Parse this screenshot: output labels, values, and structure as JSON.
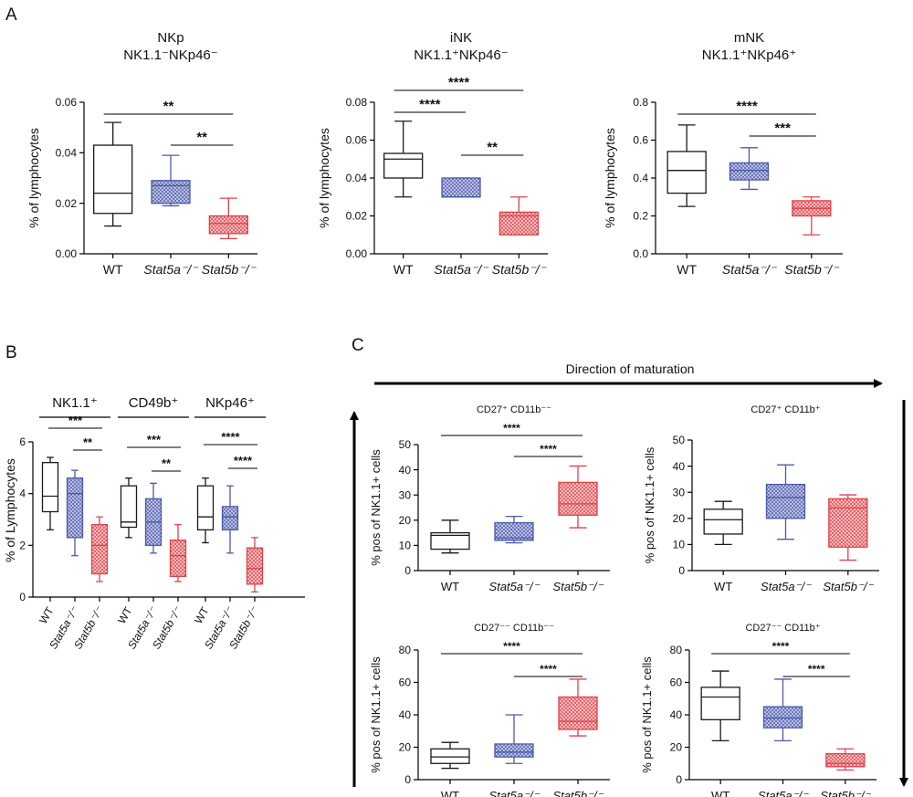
{
  "colors": {
    "WT": "#1a1a1a",
    "Stat5a": "#4b5aa8",
    "Stat5b": "#e0424a",
    "Stat5a_fill": "#c4c9e8",
    "Stat5b_fill": "#f6c2c2"
  },
  "panels": {
    "A": "A",
    "B": "B",
    "C": "C"
  },
  "legend_arrows": {
    "maturation": "Direction of maturation"
  },
  "chart_data": [
    {
      "id": "A1",
      "type": "box",
      "title": "NKp",
      "subtitle": "NK1.1⁻NKp46⁻",
      "ylabel": "% of lymphocytes",
      "ylim": [
        0,
        0.06
      ],
      "yticks": [
        "0.00",
        "0.02",
        "0.04",
        "0.06"
      ],
      "categories": [
        "WT",
        "Stat5a⁻/⁻",
        "Stat5b⁻/⁻"
      ],
      "boxes": [
        {
          "min": 0.011,
          "q1": 0.016,
          "median": 0.024,
          "q3": 0.043,
          "max": 0.052
        },
        {
          "min": 0.019,
          "q1": 0.02,
          "median": 0.027,
          "q3": 0.029,
          "max": 0.039
        },
        {
          "min": 0.006,
          "q1": 0.008,
          "median": 0.012,
          "q3": 0.015,
          "max": 0.022
        }
      ],
      "significance": [
        {
          "from": 0,
          "to": 2,
          "label": "**"
        },
        {
          "from": 1,
          "to": 2,
          "label": "**"
        }
      ]
    },
    {
      "id": "A2",
      "type": "box",
      "title": "iNK",
      "subtitle": "NK1.1⁺NKp46⁻",
      "ylabel": "% of lymphocytes",
      "ylim": [
        0,
        0.08
      ],
      "yticks": [
        "0.00",
        "0.02",
        "0.04",
        "0.06",
        "0.08"
      ],
      "categories": [
        "WT",
        "Stat5a⁻/⁻",
        "Stat5b⁻/⁻"
      ],
      "boxes": [
        {
          "min": 0.03,
          "q1": 0.04,
          "median": 0.05,
          "q3": 0.053,
          "max": 0.07
        },
        {
          "min": 0.03,
          "q1": 0.03,
          "median": 0.03,
          "q3": 0.04,
          "max": 0.04
        },
        {
          "min": 0.01,
          "q1": 0.01,
          "median": 0.02,
          "q3": 0.022,
          "max": 0.03
        }
      ],
      "significance": [
        {
          "from": 0,
          "to": 2,
          "label": "****"
        },
        {
          "from": 0,
          "to": 1,
          "label": "****"
        },
        {
          "from": 1,
          "to": 2,
          "label": "**"
        }
      ]
    },
    {
      "id": "A3",
      "type": "box",
      "title": "mNK",
      "subtitle": "NK1.1⁺NKp46⁺",
      "ylabel": "% of lymphocytes",
      "ylim": [
        0,
        0.8
      ],
      "yticks": [
        "0.0",
        "0.2",
        "0.4",
        "0.6",
        "0.8"
      ],
      "categories": [
        "WT",
        "Stat5a⁻/⁻",
        "Stat5b⁻/⁻"
      ],
      "boxes": [
        {
          "min": 0.25,
          "q1": 0.32,
          "median": 0.44,
          "q3": 0.54,
          "max": 0.68
        },
        {
          "min": 0.34,
          "q1": 0.39,
          "median": 0.44,
          "q3": 0.48,
          "max": 0.56
        },
        {
          "min": 0.1,
          "q1": 0.2,
          "median": 0.24,
          "q3": 0.28,
          "max": 0.3
        }
      ],
      "significance": [
        {
          "from": 0,
          "to": 2,
          "label": "****"
        },
        {
          "from": 1,
          "to": 2,
          "label": "***"
        }
      ]
    },
    {
      "id": "B",
      "type": "box",
      "ylabel": "% of Lymphocytes",
      "ylim": [
        0,
        6
      ],
      "yticks": [
        "0",
        "2",
        "4",
        "6"
      ],
      "groups": [
        {
          "name": "NK1.1⁺",
          "categories": [
            "WT",
            "Stat5a⁻/⁻",
            "Stat5b⁻/⁻"
          ],
          "boxes": [
            {
              "min": 2.6,
              "q1": 3.3,
              "median": 3.9,
              "q3": 5.2,
              "max": 5.4
            },
            {
              "min": 1.6,
              "q1": 2.3,
              "median": 4.0,
              "q3": 4.6,
              "max": 4.9
            },
            {
              "min": 0.6,
              "q1": 0.9,
              "median": 2.0,
              "q3": 2.8,
              "max": 3.1
            }
          ],
          "significance": [
            {
              "from": 0,
              "to": 2,
              "label": "***"
            },
            {
              "from": 1,
              "to": 2,
              "label": "**"
            }
          ]
        },
        {
          "name": "CD49b⁺",
          "categories": [
            "WT",
            "Stat5a⁻/⁻",
            "Stat5b⁻/⁻"
          ],
          "boxes": [
            {
              "min": 2.3,
              "q1": 2.7,
              "median": 2.9,
              "q3": 4.3,
              "max": 4.6
            },
            {
              "min": 1.7,
              "q1": 2.0,
              "median": 2.9,
              "q3": 3.8,
              "max": 4.4
            },
            {
              "min": 0.6,
              "q1": 0.8,
              "median": 1.6,
              "q3": 2.2,
              "max": 2.8
            }
          ],
          "significance": [
            {
              "from": 0,
              "to": 2,
              "label": "***"
            },
            {
              "from": 1,
              "to": 2,
              "label": "**"
            }
          ]
        },
        {
          "name": "NKp46⁺",
          "categories": [
            "WT",
            "Stat5a⁻/⁻",
            "Stat5b⁻/⁻"
          ],
          "boxes": [
            {
              "min": 2.1,
              "q1": 2.6,
              "median": 3.1,
              "q3": 4.3,
              "max": 4.6
            },
            {
              "min": 1.7,
              "q1": 2.6,
              "median": 3.1,
              "q3": 3.5,
              "max": 4.3
            },
            {
              "min": 0.2,
              "q1": 0.5,
              "median": 1.1,
              "q3": 1.9,
              "max": 2.3
            }
          ],
          "significance": [
            {
              "from": 0,
              "to": 2,
              "label": "****"
            },
            {
              "from": 1,
              "to": 2,
              "label": "****"
            }
          ]
        }
      ]
    },
    {
      "id": "C1",
      "type": "box",
      "title": "CD27⁺ CD11b⁻⁻",
      "ylabel": "% pos of NK1.1+ cells",
      "ylim": [
        0,
        50
      ],
      "yticks": [
        "0",
        "10",
        "20",
        "30",
        "40",
        "50"
      ],
      "categories": [
        "WT",
        "Stat5a⁻/⁻",
        "Stat5b⁻/⁻"
      ],
      "boxes": [
        {
          "min": 7,
          "q1": 8.5,
          "median": 14,
          "q3": 15,
          "max": 20
        },
        {
          "min": 11,
          "q1": 12,
          "median": 13,
          "q3": 19,
          "max": 21.5
        },
        {
          "min": 17,
          "q1": 22,
          "median": 26.5,
          "q3": 35,
          "max": 41.5
        }
      ],
      "significance": [
        {
          "from": 0,
          "to": 2,
          "label": "****"
        },
        {
          "from": 1,
          "to": 2,
          "label": "****"
        }
      ]
    },
    {
      "id": "C2",
      "type": "box",
      "title": "CD27⁺ CD11b⁺",
      "ylabel": "% pos of NK1.1+ cells",
      "ylim": [
        0,
        50
      ],
      "yticks": [
        "0",
        "10",
        "20",
        "30",
        "40",
        "50"
      ],
      "categories": [
        "WT",
        "Stat5a⁻/⁻",
        "Stat5b⁻/⁻"
      ],
      "boxes": [
        {
          "min": 10,
          "q1": 14,
          "median": 19.5,
          "q3": 23.5,
          "max": 26.5
        },
        {
          "min": 12,
          "q1": 20,
          "median": 28,
          "q3": 33,
          "max": 40.5
        },
        {
          "min": 4,
          "q1": 9,
          "median": 24,
          "q3": 27.5,
          "max": 29
        }
      ],
      "significance": []
    },
    {
      "id": "C3",
      "type": "box",
      "title": "CD27⁻⁻ CD11b⁻⁻",
      "ylabel": "% pos of NK1.1+ cells",
      "ylim": [
        0,
        80
      ],
      "yticks": [
        "0",
        "20",
        "40",
        "60",
        "80"
      ],
      "categories": [
        "WT",
        "Stat5a⁻/⁻",
        "Stat5b⁻/⁻"
      ],
      "boxes": [
        {
          "min": 7,
          "q1": 10,
          "median": 14,
          "q3": 19,
          "max": 23
        },
        {
          "min": 10,
          "q1": 14,
          "median": 17,
          "q3": 22,
          "max": 40
        },
        {
          "min": 27,
          "q1": 31,
          "median": 36,
          "q3": 51,
          "max": 62
        }
      ],
      "significance": [
        {
          "from": 0,
          "to": 2,
          "label": "****"
        },
        {
          "from": 1,
          "to": 2,
          "label": "****"
        }
      ]
    },
    {
      "id": "C4",
      "type": "box",
      "title": "CD27⁻⁻ CD11b⁺",
      "ylabel": "% pos of NK1.1+ cells",
      "ylim": [
        0,
        80
      ],
      "yticks": [
        "0",
        "20",
        "40",
        "60",
        "80"
      ],
      "categories": [
        "WT",
        "Stat5a⁻/⁻",
        "Stat5b⁻/⁻"
      ],
      "boxes": [
        {
          "min": 24,
          "q1": 37,
          "median": 51,
          "q3": 57,
          "max": 67
        },
        {
          "min": 24,
          "q1": 32,
          "median": 38,
          "q3": 45,
          "max": 62
        },
        {
          "min": 6,
          "q1": 8,
          "median": 10,
          "q3": 16,
          "max": 19
        }
      ],
      "significance": [
        {
          "from": 0,
          "to": 2,
          "label": "****"
        },
        {
          "from": 1,
          "to": 2,
          "label": "****"
        }
      ]
    }
  ]
}
